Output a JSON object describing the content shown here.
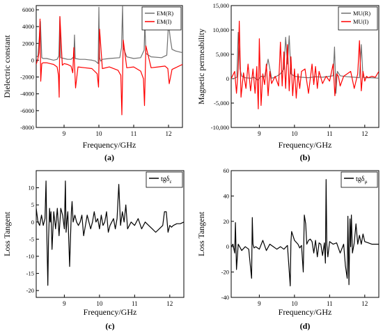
{
  "chart_data": [
    {
      "type": "line",
      "panel_label": "(a)",
      "xlabel": "Frequency/GHz",
      "ylabel": "Dielectric constant",
      "xlim": [
        8.2,
        12.4
      ],
      "ylim": [
        -8000,
        6500
      ],
      "xticks": [
        9,
        10,
        11,
        12
      ],
      "xtick_labels": [
        "9",
        "10",
        "11",
        "12"
      ],
      "yticks": [
        -8000,
        -6000,
        -4000,
        -2000,
        0,
        2000,
        4000,
        6000
      ],
      "ytick_labels": [
        "-8000",
        "-6000",
        "-4000",
        "-2000",
        "0",
        "2000",
        "4000",
        "6000"
      ],
      "legend_position": "top-right",
      "series": [
        {
          "name": "EM(R)",
          "color": "#707070",
          "x": [
            8.2,
            8.25,
            8.32,
            8.36,
            8.4,
            8.5,
            8.6,
            8.7,
            8.8,
            8.85,
            8.88,
            8.9,
            9.0,
            9.1,
            9.2,
            9.28,
            9.3,
            9.32,
            9.45,
            9.6,
            9.8,
            9.9,
            9.98,
            10.0,
            10.02,
            10.05,
            10.1,
            10.3,
            10.6,
            10.65,
            10.68,
            10.7,
            10.8,
            11.0,
            11.2,
            11.3,
            11.32,
            11.35,
            11.5,
            11.8,
            11.95,
            12.0,
            12.05,
            12.1,
            12.2,
            12.3,
            12.4
          ],
          "y": [
            500,
            400,
            4600,
            300,
            200,
            200,
            100,
            0,
            100,
            500,
            5200,
            300,
            200,
            100,
            100,
            400,
            3000,
            200,
            100,
            100,
            0,
            -100,
            -400,
            6300,
            300,
            -100,
            100,
            200,
            300,
            1500,
            6400,
            1500,
            400,
            200,
            300,
            1200,
            4500,
            800,
            400,
            300,
            600,
            4400,
            2600,
            1300,
            1100,
            1000,
            900
          ]
        },
        {
          "name": "EM(I)",
          "color": "#ff0000",
          "x": [
            8.2,
            8.25,
            8.28,
            8.31,
            8.33,
            8.36,
            8.4,
            8.5,
            8.6,
            8.7,
            8.8,
            8.84,
            8.86,
            8.88,
            8.95,
            9.0,
            9.1,
            9.2,
            9.25,
            9.28,
            9.33,
            9.4,
            9.6,
            9.8,
            9.95,
            9.99,
            10.02,
            10.1,
            10.3,
            10.55,
            10.63,
            10.66,
            10.7,
            10.8,
            11.0,
            11.2,
            11.28,
            11.31,
            11.35,
            11.5,
            11.7,
            11.9,
            11.98,
            12.02,
            12.1,
            12.2,
            12.4
          ],
          "y": [
            -500,
            200,
            900,
            4900,
            -2500,
            -400,
            -300,
            -300,
            -400,
            -500,
            -800,
            -1800,
            -4400,
            5200,
            -600,
            -400,
            -500,
            -700,
            -1500,
            1500,
            -3300,
            -800,
            -900,
            -1000,
            -1600,
            -3200,
            3700,
            -1000,
            -800,
            -1200,
            -1800,
            -6500,
            2400,
            -900,
            -800,
            -1300,
            -2200,
            -5400,
            1700,
            -900,
            -800,
            -700,
            -1000,
            -2800,
            -1100,
            -900,
            -500
          ]
        }
      ]
    },
    {
      "type": "line",
      "panel_label": "(b)",
      "xlabel": "Frequency/GHz",
      "ylabel": "Magnetic permeability",
      "xlim": [
        8.2,
        12.4
      ],
      "ylim": [
        -10000,
        15000
      ],
      "xticks": [
        9,
        10,
        11,
        12
      ],
      "xtick_labels": [
        "9",
        "10",
        "11",
        "12"
      ],
      "yticks": [
        -10000,
        -5000,
        0,
        5000,
        10000,
        15000
      ],
      "ytick_labels": [
        "-10,000",
        "-5,000",
        "0",
        "5,000",
        "10,000",
        "15,000"
      ],
      "legend_position": "top-right",
      "series": [
        {
          "name": "MU(R)",
          "color": "#707070",
          "x": [
            8.2,
            8.3,
            8.36,
            8.4,
            8.45,
            8.5,
            8.6,
            8.75,
            8.85,
            8.95,
            9.05,
            9.15,
            9.25,
            9.35,
            9.45,
            9.6,
            9.7,
            9.75,
            9.8,
            9.85,
            9.9,
            10.0,
            10.2,
            10.4,
            10.6,
            10.8,
            11.0,
            11.1,
            11.14,
            11.18,
            11.22,
            11.3,
            11.5,
            11.7,
            11.85,
            11.9,
            11.95,
            12.0,
            12.2,
            12.4
          ],
          "y": [
            0,
            100,
            300,
            9500,
            2000,
            500,
            200,
            100,
            300,
            -300,
            500,
            400,
            4000,
            100,
            300,
            1000,
            2000,
            8500,
            3000,
            8800,
            1000,
            500,
            300,
            200,
            400,
            300,
            500,
            600,
            6500,
            -3000,
            1500,
            600,
            400,
            300,
            200,
            7000,
            300,
            200,
            200,
            100
          ]
        },
        {
          "name": "MU(I)",
          "color": "#ff0000",
          "x": [
            8.2,
            8.3,
            8.35,
            8.4,
            8.43,
            8.48,
            8.55,
            8.62,
            8.68,
            8.75,
            8.82,
            8.88,
            8.93,
            8.97,
            9.0,
            9.05,
            9.1,
            9.15,
            9.2,
            9.25,
            9.3,
            9.35,
            9.45,
            9.55,
            9.6,
            9.65,
            9.7,
            9.75,
            9.8,
            9.85,
            9.9,
            9.95,
            10.0,
            10.05,
            10.1,
            10.15,
            10.2,
            10.3,
            10.4,
            10.5,
            10.55,
            10.6,
            10.65,
            10.7,
            10.8,
            10.9,
            11.0,
            11.1,
            11.15,
            11.2,
            11.25,
            11.3,
            11.4,
            11.5,
            11.6,
            11.7,
            11.8,
            11.85,
            11.9,
            11.95,
            12.0,
            12.05,
            12.1,
            12.2,
            12.3,
            12.4
          ],
          "y": [
            0,
            1500,
            -3000,
            2000,
            11800,
            -3800,
            1200,
            -2000,
            3000,
            -2500,
            2000,
            -3000,
            2500,
            -6200,
            8200,
            -5500,
            1000,
            -1200,
            3000,
            -3500,
            1500,
            -1000,
            500,
            -1500,
            7500,
            -1500,
            5500,
            -2000,
            7000,
            -2500,
            4500,
            -3500,
            2000,
            -4000,
            1000,
            -2000,
            1500,
            2000,
            -3000,
            3000,
            -1200,
            2500,
            -2000,
            1500,
            -1000,
            500,
            -500,
            3000,
            -3500,
            1000,
            500,
            -1500,
            500,
            1000,
            1500,
            -2000,
            1000,
            7800,
            -2500,
            1500,
            -500,
            500,
            200,
            500,
            300,
            1500
          ]
        }
      ]
    },
    {
      "type": "line",
      "panel_label": "(c)",
      "xlabel": "Frequency/GHz",
      "ylabel": "Loss Tangent",
      "xlim": [
        8.2,
        12.4
      ],
      "ylim": [
        -22,
        15
      ],
      "xticks": [
        9,
        10,
        11,
        12
      ],
      "xtick_labels": [
        "9",
        "10",
        "11",
        "12"
      ],
      "yticks": [
        -20,
        -15,
        -10,
        -5,
        0,
        5,
        10
      ],
      "ytick_labels": [
        "-20",
        "-15",
        "-10",
        "-5",
        "0",
        "5",
        "10"
      ],
      "legend_position": "top-right",
      "series": [
        {
          "name": "tgδε",
          "legend_main": "tgδ",
          "legend_sub": "ε",
          "color": "#000000",
          "x": [
            8.2,
            8.25,
            8.3,
            8.35,
            8.4,
            8.45,
            8.48,
            8.5,
            8.53,
            8.55,
            8.58,
            8.6,
            8.62,
            8.65,
            8.7,
            8.75,
            8.8,
            8.85,
            8.9,
            8.95,
            9.0,
            9.03,
            9.05,
            9.08,
            9.1,
            9.15,
            9.18,
            9.2,
            9.22,
            9.25,
            9.3,
            9.35,
            9.4,
            9.45,
            9.5,
            9.55,
            9.6,
            9.65,
            9.7,
            9.75,
            9.8,
            9.85,
            9.9,
            9.95,
            10.0,
            10.05,
            10.1,
            10.15,
            10.2,
            10.25,
            10.3,
            10.35,
            10.4,
            10.45,
            10.5,
            10.55,
            10.6,
            10.65,
            10.7,
            10.75,
            10.8,
            10.9,
            11.0,
            11.1,
            11.2,
            11.3,
            11.4,
            11.5,
            11.6,
            11.7,
            11.8,
            11.85,
            11.9,
            11.95,
            12.0,
            12.05,
            12.1,
            12.2,
            12.3,
            12.4
          ],
          "y": [
            4,
            0,
            -1,
            2,
            -1,
            1,
            12,
            -2,
            -18.5,
            -5,
            4,
            0,
            3,
            -8,
            3,
            -2,
            4,
            -4,
            4,
            2,
            -2,
            12,
            -3,
            1,
            3,
            -13,
            -3,
            3,
            6,
            0,
            2,
            0,
            -1,
            0,
            2,
            -4,
            -1,
            2,
            0,
            -2,
            0,
            3,
            0,
            1,
            -2,
            2,
            -1,
            0,
            3,
            -3,
            -1,
            0,
            1,
            -2,
            1,
            11,
            -1,
            3,
            0,
            5,
            -2,
            0,
            -1,
            1,
            -2,
            0,
            -1,
            -2,
            -3,
            -2,
            -1,
            3,
            3,
            -3,
            -1,
            -1.5,
            -1,
            -0.5,
            -0.5,
            0
          ]
        }
      ]
    },
    {
      "type": "line",
      "panel_label": "(d)",
      "xlabel": "Frequency/GHz",
      "ylabel": "Loss Tangent",
      "xlim": [
        8.2,
        12.4
      ],
      "ylim": [
        -40,
        60
      ],
      "xticks": [
        9,
        10,
        11,
        12
      ],
      "xtick_labels": [
        "9",
        "10",
        "11",
        "12"
      ],
      "yticks": [
        -40,
        -20,
        0,
        20,
        40,
        60
      ],
      "ytick_labels": [
        "-40",
        "-20",
        "0",
        "20",
        "40",
        "60"
      ],
      "legend_position": "top-right",
      "series": [
        {
          "name": "tgδμ",
          "legend_main": "tgδ",
          "legend_sub": "μ",
          "color": "#000000",
          "x": [
            8.2,
            8.25,
            8.3,
            8.32,
            8.35,
            8.4,
            8.5,
            8.6,
            8.7,
            8.78,
            8.8,
            8.82,
            8.85,
            8.9,
            9.0,
            9.1,
            9.2,
            9.3,
            9.4,
            9.5,
            9.6,
            9.7,
            9.8,
            9.88,
            9.9,
            9.92,
            10.0,
            10.1,
            10.15,
            10.2,
            10.25,
            10.28,
            10.32,
            10.35,
            10.4,
            10.45,
            10.5,
            10.55,
            10.6,
            10.65,
            10.7,
            10.75,
            10.8,
            10.85,
            10.88,
            10.9,
            10.92,
            10.95,
            11.0,
            11.1,
            11.2,
            11.3,
            11.4,
            11.45,
            11.5,
            11.52,
            11.55,
            11.58,
            11.6,
            11.62,
            11.65,
            11.7,
            11.75,
            11.8,
            11.85,
            11.9,
            11.95,
            12.0,
            12.1,
            12.2,
            12.3,
            12.4
          ],
          "y": [
            0,
            2,
            -5,
            19,
            -18,
            2,
            -3,
            0,
            -2,
            -25,
            23,
            2,
            -1,
            0,
            -2,
            5,
            -3,
            2,
            0,
            -2,
            0,
            -2,
            1,
            -31,
            4,
            12,
            5,
            2,
            -1,
            1,
            -20,
            25,
            18,
            2,
            5,
            6,
            4,
            -5,
            5,
            -8,
            3,
            2,
            -7,
            3,
            -13,
            53,
            2,
            -8,
            4,
            2,
            3,
            -5,
            2,
            -15,
            -25,
            24,
            -30,
            22,
            0,
            25,
            -5,
            3,
            18,
            2,
            9,
            2,
            10,
            4,
            3,
            2,
            2,
            2
          ]
        }
      ]
    }
  ]
}
